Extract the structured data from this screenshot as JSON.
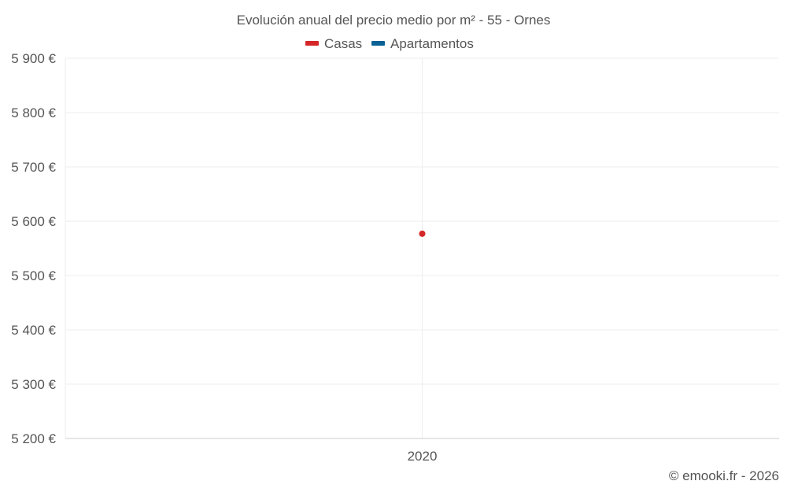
{
  "chart_data": {
    "type": "line",
    "title": "Evolución anual del precio medio por m² - 55 - Ornes",
    "x_categories": [
      "2020"
    ],
    "y_ticks": [
      "5 200 €",
      "5 300 €",
      "5 400 €",
      "5 500 €",
      "5 600 €",
      "5 700 €",
      "5 800 €",
      "5 900 €"
    ],
    "ylim": [
      5200,
      5900
    ],
    "grid": true,
    "legend_position": "top-center",
    "series": [
      {
        "name": "Casas",
        "color": "#d62728",
        "values": [
          5577
        ]
      },
      {
        "name": "Apartamentos",
        "color": "#0a6196",
        "values": []
      }
    ]
  },
  "credit": "© emooki.fr - 2026"
}
